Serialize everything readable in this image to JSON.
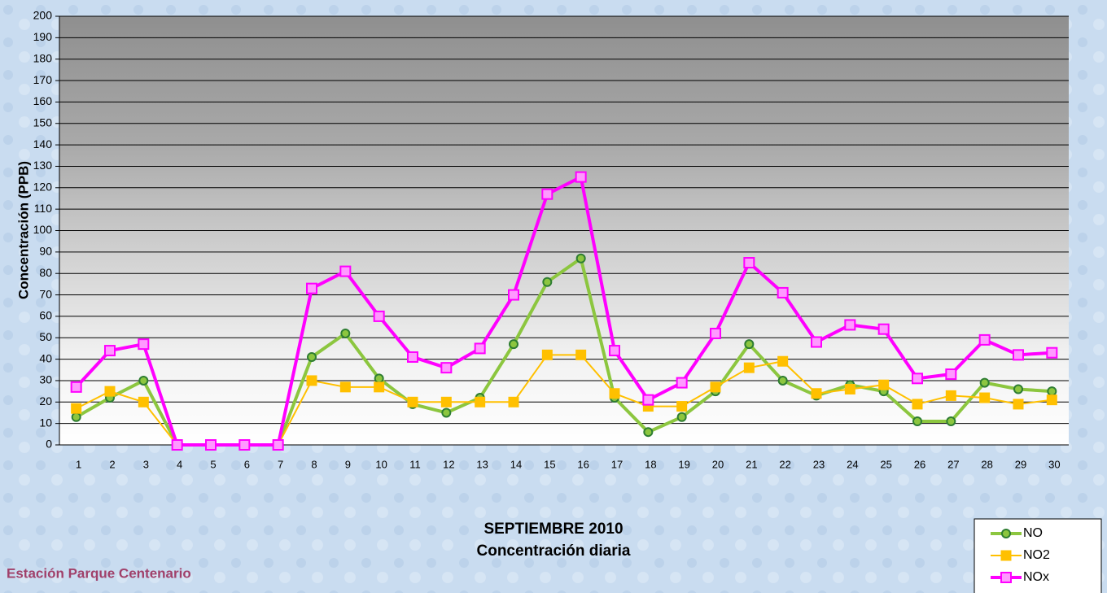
{
  "chart_data": {
    "type": "line",
    "title": "SEPTIEMBRE 2010",
    "subtitle": "Concentración diaria",
    "station": "Estación Parque Centenario",
    "y_label": "Concentración  (PPB)",
    "categories": [
      "1",
      "2",
      "3",
      "4",
      "5",
      "6",
      "7",
      "8",
      "9",
      "10",
      "11",
      "12",
      "13",
      "14",
      "15",
      "16",
      "17",
      "18",
      "19",
      "20",
      "21",
      "22",
      "23",
      "24",
      "25",
      "26",
      "27",
      "28",
      "29",
      "30"
    ],
    "series": [
      {
        "name": "NO",
        "color": "#8cc63f",
        "marker": "circle",
        "values": [
          13,
          22,
          30,
          0,
          0,
          0,
          0,
          41,
          52,
          31,
          19,
          15,
          22,
          47,
          76,
          87,
          22,
          6,
          13,
          25,
          47,
          30,
          23,
          28,
          25,
          11,
          11,
          29,
          26,
          25
        ]
      },
      {
        "name": "NO2",
        "color": "#ffc000",
        "marker": "square",
        "values": [
          17,
          25,
          20,
          0,
          0,
          0,
          0,
          30,
          27,
          27,
          20,
          20,
          20,
          20,
          42,
          42,
          24,
          18,
          18,
          27,
          36,
          39,
          24,
          26,
          28,
          19,
          23,
          22,
          19,
          21
        ]
      },
      {
        "name": "NOx",
        "color": "#ff00ff",
        "marker": "square",
        "values": [
          27,
          44,
          47,
          0,
          0,
          0,
          0,
          73,
          81,
          60,
          41,
          36,
          45,
          70,
          117,
          125,
          44,
          21,
          29,
          52,
          85,
          71,
          48,
          56,
          54,
          31,
          33,
          49,
          42,
          43
        ]
      }
    ],
    "ylim": [
      0,
      200
    ],
    "yticks": [
      0,
      10,
      20,
      30,
      40,
      50,
      60,
      70,
      80,
      90,
      100,
      110,
      120,
      130,
      140,
      150,
      160,
      170,
      180,
      190,
      200
    ],
    "grid": true,
    "legend": "bottom-right"
  }
}
